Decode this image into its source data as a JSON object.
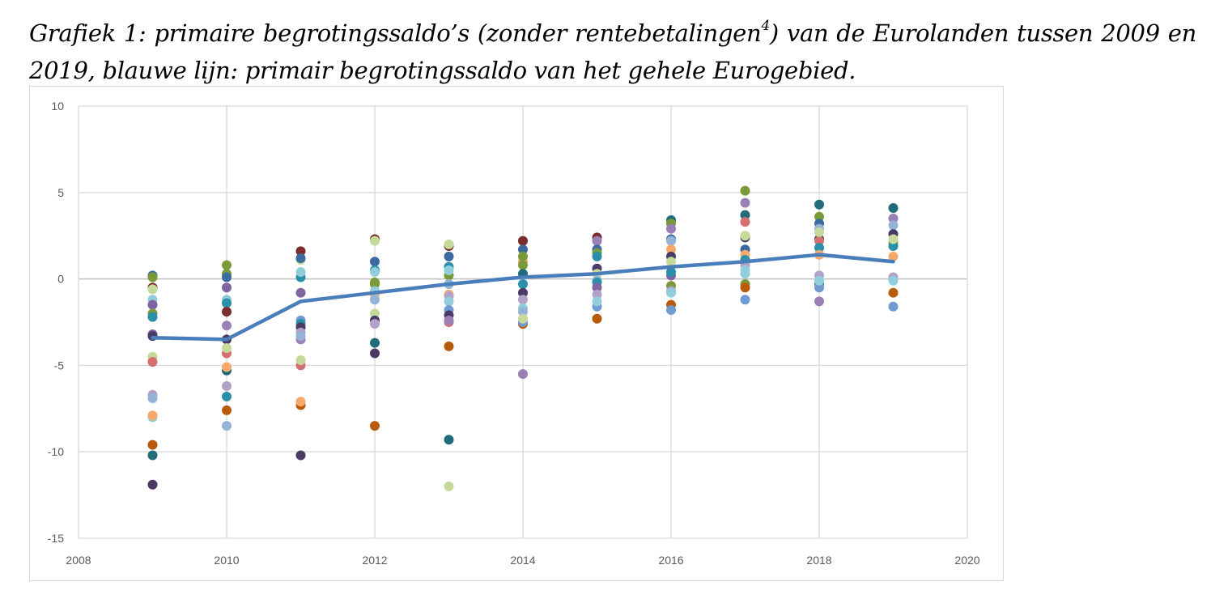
{
  "title": {
    "part1": "Grafiek 1: primaire begrotingssaldo’s (zonder rentebetalingen",
    "footnote": "4",
    "part2": ") van de Eurolanden tussen 2009 en 2019, blauwe lijn: primair begrotingssaldo van het gehele Eurogebied."
  },
  "chart_data": {
    "type": "scatter",
    "xlim": [
      2008,
      2020
    ],
    "ylim": [
      -15,
      10
    ],
    "xticks": [
      "2008",
      "2010",
      "2012",
      "2014",
      "2016",
      "2018",
      "2020"
    ],
    "yticks": [
      "10",
      "5",
      "0",
      "-5",
      "-10",
      "-15"
    ],
    "grid": true,
    "line_series": {
      "color": "#4a7ebb",
      "x": [
        2009,
        2010,
        2011,
        2012,
        2013,
        2014,
        2015,
        2016,
        2017,
        2018,
        2019
      ],
      "y": [
        -3.4,
        -3.5,
        -1.3,
        -0.8,
        -0.3,
        0.1,
        0.3,
        0.7,
        1.0,
        1.4,
        1.0
      ]
    },
    "palette": [
      "#7b2c2c",
      "#3a6aa0",
      "#7a9a3a",
      "#c5d99a",
      "#92cddc",
      "#8064a2",
      "#2a8fa8",
      "#d47070",
      "#f6a96b",
      "#226b7a",
      "#4b3a66",
      "#b85a0a",
      "#b3a2c7",
      "#95b3d7",
      "#9b80b8",
      "#6f9bd0"
    ],
    "points": [
      [
        2009,
        0.2,
        1
      ],
      [
        2009,
        0.1,
        2
      ],
      [
        2009,
        -0.5,
        0
      ],
      [
        2009,
        -0.6,
        3
      ],
      [
        2009,
        -1.2,
        4
      ],
      [
        2009,
        -1.5,
        5
      ],
      [
        2009,
        -2.0,
        2
      ],
      [
        2009,
        -2.2,
        6
      ],
      [
        2009,
        -3.2,
        5
      ],
      [
        2009,
        -3.3,
        10
      ],
      [
        2009,
        -4.5,
        3
      ],
      [
        2009,
        -4.8,
        7
      ],
      [
        2009,
        -6.7,
        12
      ],
      [
        2009,
        -6.9,
        13
      ],
      [
        2009,
        -8.0,
        4
      ],
      [
        2009,
        -7.9,
        8
      ],
      [
        2009,
        -9.6,
        11
      ],
      [
        2009,
        -10.2,
        9
      ],
      [
        2009,
        -11.9,
        10
      ],
      [
        2010,
        0.8,
        2
      ],
      [
        2010,
        0.3,
        2
      ],
      [
        2010,
        0.1,
        1
      ],
      [
        2010,
        -0.5,
        5
      ],
      [
        2010,
        -1.2,
        4
      ],
      [
        2010,
        -1.4,
        6
      ],
      [
        2010,
        -1.9,
        0
      ],
      [
        2010,
        -2.7,
        14
      ],
      [
        2010,
        -3.5,
        10
      ],
      [
        2010,
        -4.3,
        7
      ],
      [
        2010,
        -4.0,
        3
      ],
      [
        2010,
        -5.3,
        9
      ],
      [
        2010,
        -5.1,
        8
      ],
      [
        2010,
        -6.2,
        12
      ],
      [
        2010,
        -6.8,
        6
      ],
      [
        2010,
        -7.6,
        11
      ],
      [
        2010,
        -8.5,
        13
      ],
      [
        2011,
        1.6,
        0
      ],
      [
        2011,
        1.1,
        3
      ],
      [
        2011,
        1.2,
        1
      ],
      [
        2011,
        0.1,
        6
      ],
      [
        2011,
        0.4,
        4
      ],
      [
        2011,
        -0.8,
        5
      ],
      [
        2011,
        -2.4,
        15
      ],
      [
        2011,
        -2.6,
        6
      ],
      [
        2011,
        -2.8,
        10
      ],
      [
        2011,
        -3.5,
        14
      ],
      [
        2011,
        -3.1,
        12
      ],
      [
        2011,
        -3.3,
        13
      ],
      [
        2011,
        -5.0,
        7
      ],
      [
        2011,
        -4.7,
        3
      ],
      [
        2011,
        -7.3,
        11
      ],
      [
        2011,
        -7.1,
        8
      ],
      [
        2011,
        -10.2,
        10
      ],
      [
        2012,
        2.3,
        0
      ],
      [
        2012,
        2.2,
        3
      ],
      [
        2012,
        1.0,
        1
      ],
      [
        2012,
        0.5,
        6
      ],
      [
        2012,
        0.4,
        4
      ],
      [
        2012,
        -0.2,
        2
      ],
      [
        2012,
        -0.3,
        2
      ],
      [
        2012,
        -0.9,
        8
      ],
      [
        2012,
        -0.7,
        4
      ],
      [
        2012,
        -1.2,
        13
      ],
      [
        2012,
        -2.0,
        3
      ],
      [
        2012,
        -2.4,
        10
      ],
      [
        2012,
        -2.6,
        12
      ],
      [
        2012,
        -3.7,
        9
      ],
      [
        2012,
        -4.3,
        10
      ],
      [
        2012,
        -8.5,
        11
      ],
      [
        2013,
        1.9,
        0
      ],
      [
        2013,
        2.0,
        3
      ],
      [
        2013,
        1.3,
        1
      ],
      [
        2013,
        0.2,
        2
      ],
      [
        2013,
        0.7,
        6
      ],
      [
        2013,
        0.5,
        4
      ],
      [
        2013,
        -0.3,
        13
      ],
      [
        2013,
        -0.9,
        8
      ],
      [
        2013,
        -1.0,
        12
      ],
      [
        2013,
        -1.3,
        4
      ],
      [
        2013,
        -1.8,
        15
      ],
      [
        2013,
        -2.1,
        10
      ],
      [
        2013,
        -2.5,
        7
      ],
      [
        2013,
        -2.4,
        14
      ],
      [
        2013,
        -3.9,
        11
      ],
      [
        2013,
        -9.3,
        9
      ],
      [
        2013,
        -12.0,
        3
      ],
      [
        2014,
        2.2,
        0
      ],
      [
        2014,
        1.7,
        1
      ],
      [
        2014,
        1.0,
        8
      ],
      [
        2014,
        1.3,
        2
      ],
      [
        2014,
        0.8,
        2
      ],
      [
        2014,
        0.3,
        9
      ],
      [
        2014,
        -0.3,
        6
      ],
      [
        2014,
        -0.8,
        10
      ],
      [
        2014,
        -1.2,
        12
      ],
      [
        2014,
        -1.7,
        4
      ],
      [
        2014,
        -1.9,
        13
      ],
      [
        2014,
        -2.6,
        11
      ],
      [
        2014,
        -2.5,
        15
      ],
      [
        2014,
        -2.3,
        3
      ],
      [
        2014,
        -5.5,
        14
      ],
      [
        2015,
        2.4,
        0
      ],
      [
        2015,
        2.2,
        14
      ],
      [
        2015,
        1.7,
        1
      ],
      [
        2015,
        1.5,
        2
      ],
      [
        2015,
        1.3,
        6
      ],
      [
        2015,
        0.6,
        10
      ],
      [
        2015,
        0.3,
        3
      ],
      [
        2015,
        -0.1,
        13
      ],
      [
        2015,
        -0.2,
        6
      ],
      [
        2015,
        -0.5,
        5
      ],
      [
        2015,
        -0.9,
        12
      ],
      [
        2015,
        -1.6,
        15
      ],
      [
        2015,
        -1.3,
        4
      ],
      [
        2015,
        -2.3,
        11
      ],
      [
        2016,
        3.4,
        9
      ],
      [
        2016,
        3.2,
        2
      ],
      [
        2016,
        2.9,
        14
      ],
      [
        2016,
        2.3,
        1
      ],
      [
        2016,
        2.2,
        13
      ],
      [
        2016,
        1.7,
        8
      ],
      [
        2016,
        1.3,
        10
      ],
      [
        2016,
        1.0,
        3
      ],
      [
        2016,
        0.2,
        5
      ],
      [
        2016,
        0.4,
        6
      ],
      [
        2016,
        -0.4,
        2
      ],
      [
        2016,
        -0.7,
        12
      ],
      [
        2016,
        -0.8,
        4
      ],
      [
        2016,
        -1.5,
        11
      ],
      [
        2016,
        -1.8,
        15
      ],
      [
        2017,
        5.1,
        2
      ],
      [
        2017,
        4.4,
        14
      ],
      [
        2017,
        3.7,
        9
      ],
      [
        2017,
        3.3,
        7
      ],
      [
        2017,
        2.4,
        10
      ],
      [
        2017,
        2.5,
        3
      ],
      [
        2017,
        1.7,
        1
      ],
      [
        2017,
        1.4,
        8
      ],
      [
        2017,
        1.1,
        6
      ],
      [
        2017,
        0.8,
        12
      ],
      [
        2017,
        0.5,
        4
      ],
      [
        2017,
        0.3,
        4
      ],
      [
        2017,
        -0.3,
        2
      ],
      [
        2017,
        -0.5,
        11
      ],
      [
        2017,
        -1.2,
        15
      ],
      [
        2018,
        4.3,
        9
      ],
      [
        2018,
        3.6,
        2
      ],
      [
        2018,
        3.2,
        1
      ],
      [
        2018,
        2.9,
        13
      ],
      [
        2018,
        2.3,
        10
      ],
      [
        2018,
        2.2,
        7
      ],
      [
        2018,
        2.7,
        3
      ],
      [
        2018,
        1.8,
        6
      ],
      [
        2018,
        1.4,
        8
      ],
      [
        2018,
        0.2,
        12
      ],
      [
        2018,
        -0.3,
        6
      ],
      [
        2018,
        -0.5,
        15
      ],
      [
        2018,
        -0.1,
        4
      ],
      [
        2018,
        -1.3,
        14
      ],
      [
        2019,
        4.1,
        9
      ],
      [
        2019,
        3.5,
        14
      ],
      [
        2019,
        3.1,
        13
      ],
      [
        2019,
        2.6,
        10
      ],
      [
        2019,
        2.1,
        2
      ],
      [
        2019,
        1.9,
        6
      ],
      [
        2019,
        2.3,
        3
      ],
      [
        2019,
        1.3,
        8
      ],
      [
        2019,
        0.1,
        12
      ],
      [
        2019,
        -0.1,
        4
      ],
      [
        2019,
        -0.8,
        11
      ],
      [
        2019,
        -1.6,
        15
      ]
    ]
  }
}
